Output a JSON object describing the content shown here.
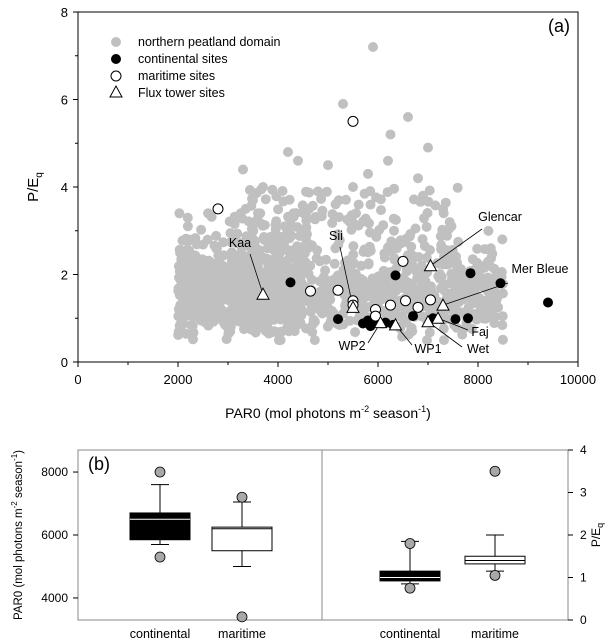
{
  "chart_data": [
    {
      "type": "scatter",
      "panel_label": "(a)",
      "xlabel": "PAR0 (mol photons m-2 season-1)",
      "ylabel": "P/Eq",
      "xlim": [
        0,
        10000
      ],
      "ylim": [
        0,
        8
      ],
      "xticks": [
        0,
        2000,
        4000,
        6000,
        8000,
        10000
      ],
      "yticks": [
        0,
        2,
        4,
        6,
        8
      ],
      "grid": false,
      "legend_position": "top-left",
      "legend": [
        {
          "label": "northern peatland domain",
          "marker": "filled-circle",
          "color": "#c0c0c0"
        },
        {
          "label": "continental sites",
          "marker": "filled-circle",
          "color": "#000000"
        },
        {
          "label": "maritime sites",
          "marker": "open-circle",
          "color": "#ffffff"
        },
        {
          "label": "Flux tower sites",
          "marker": "open-triangle",
          "color": "#ffffff"
        }
      ],
      "series": [
        {
          "name": "northern peatland domain",
          "description": "dense cloud of ~2000 grid cells",
          "cloud_core": {
            "x_range": [
              2000,
              8500
            ],
            "y_range": [
              0.5,
              2.5
            ]
          },
          "outliers": [
            {
              "x": 5900,
              "y": 7.2
            },
            {
              "x": 5300,
              "y": 5.9
            },
            {
              "x": 6600,
              "y": 5.6
            },
            {
              "x": 6250,
              "y": 5.2
            },
            {
              "x": 7000,
              "y": 4.9
            },
            {
              "x": 4400,
              "y": 4.6
            },
            {
              "x": 6200,
              "y": 4.6
            },
            {
              "x": 5000,
              "y": 4.5
            },
            {
              "x": 4200,
              "y": 4.8
            },
            {
              "x": 3300,
              "y": 4.4
            },
            {
              "x": 5800,
              "y": 4.3
            },
            {
              "x": 3700,
              "y": 4.0
            },
            {
              "x": 6800,
              "y": 4.2
            },
            {
              "x": 5500,
              "y": 4.0
            },
            {
              "x": 4800,
              "y": 3.9
            },
            {
              "x": 6900,
              "y": 3.8
            },
            {
              "x": 3500,
              "y": 3.7
            },
            {
              "x": 7300,
              "y": 3.5
            }
          ]
        },
        {
          "name": "continental sites",
          "points": [
            {
              "x": 4250,
              "y": 1.82
            },
            {
              "x": 6350,
              "y": 1.98
            },
            {
              "x": 7850,
              "y": 2.03
            },
            {
              "x": 8450,
              "y": 1.8
            },
            {
              "x": 9400,
              "y": 1.36
            },
            {
              "x": 5200,
              "y": 0.98
            },
            {
              "x": 5700,
              "y": 0.88
            },
            {
              "x": 5850,
              "y": 0.82
            },
            {
              "x": 6000,
              "y": 0.92
            },
            {
              "x": 6150,
              "y": 0.9
            },
            {
              "x": 6300,
              "y": 0.85
            },
            {
              "x": 6700,
              "y": 1.05
            },
            {
              "x": 7100,
              "y": 1.0
            },
            {
              "x": 7550,
              "y": 0.98
            },
            {
              "x": 7800,
              "y": 1.0
            },
            {
              "x": 5800,
              "y": 0.95
            }
          ]
        },
        {
          "name": "maritime sites",
          "points": [
            {
              "x": 2800,
              "y": 3.5
            },
            {
              "x": 5500,
              "y": 5.5
            },
            {
              "x": 4650,
              "y": 1.62
            },
            {
              "x": 5200,
              "y": 1.64
            },
            {
              "x": 5500,
              "y": 1.4
            },
            {
              "x": 5500,
              "y": 1.3
            },
            {
              "x": 5950,
              "y": 1.2
            },
            {
              "x": 5950,
              "y": 1.05
            },
            {
              "x": 6250,
              "y": 1.3
            },
            {
              "x": 6500,
              "y": 2.3
            },
            {
              "x": 6550,
              "y": 1.4
            },
            {
              "x": 7050,
              "y": 1.42
            },
            {
              "x": 6800,
              "y": 1.25
            }
          ]
        },
        {
          "name": "Flux tower sites",
          "points": [
            {
              "x": 3700,
              "y": 1.55,
              "label": "Kaa"
            },
            {
              "x": 5500,
              "y": 1.25,
              "label": "Sii"
            },
            {
              "x": 7050,
              "y": 2.2,
              "label": "Glencar"
            },
            {
              "x": 7300,
              "y": 1.3,
              "label": "Mer Bleue"
            },
            {
              "x": 7200,
              "y": 1.0,
              "label": "Faj"
            },
            {
              "x": 7000,
              "y": 0.92,
              "label": "Wet"
            },
            {
              "x": 6350,
              "y": 0.85,
              "label": "WP1"
            },
            {
              "x": 6050,
              "y": 0.9,
              "label": "WP2"
            }
          ]
        }
      ],
      "annotations": [
        "Kaa",
        "Sii",
        "Glencar",
        "Mer Bleue",
        "Faj",
        "Wet",
        "WP1",
        "WP2"
      ]
    },
    {
      "type": "box",
      "panel_label": "(b)",
      "left_panel": {
        "ylabel": "PAR0 (mol photons m-2 season-1)",
        "ylim": [
          3300,
          8700
        ],
        "yticks": [
          4000,
          6000,
          8000
        ],
        "categories": [
          "continental",
          "maritime"
        ],
        "boxes": [
          {
            "name": "continental",
            "fill": "#000000",
            "q1": 5850,
            "median": 6500,
            "q3": 6700,
            "whisker_low": 5700,
            "whisker_high": 7600,
            "outliers": [
              8000,
              5300
            ]
          },
          {
            "name": "maritime",
            "fill": "#ffffff",
            "q1": 5500,
            "median": 6200,
            "q3": 6250,
            "whisker_low": 5000,
            "whisker_high": 7050,
            "outliers": [
              7200,
              3400
            ]
          }
        ]
      },
      "right_panel": {
        "ylabel": "P/Eq",
        "ylim": [
          0,
          4
        ],
        "yticks": [
          0,
          1,
          2,
          3,
          4
        ],
        "categories": [
          "continental",
          "maritime"
        ],
        "boxes": [
          {
            "name": "continental",
            "fill": "#000000",
            "q1": 0.92,
            "median": 1.0,
            "q3": 1.15,
            "whisker_low": 0.85,
            "whisker_high": 1.85,
            "outliers": [
              1.8,
              0.75
            ]
          },
          {
            "name": "maritime",
            "fill": "#ffffff",
            "q1": 1.32,
            "median": 1.4,
            "q3": 1.5,
            "whisker_low": 1.15,
            "whisker_high": 2.0,
            "outliers": [
              3.5,
              1.05
            ]
          }
        ]
      }
    }
  ]
}
